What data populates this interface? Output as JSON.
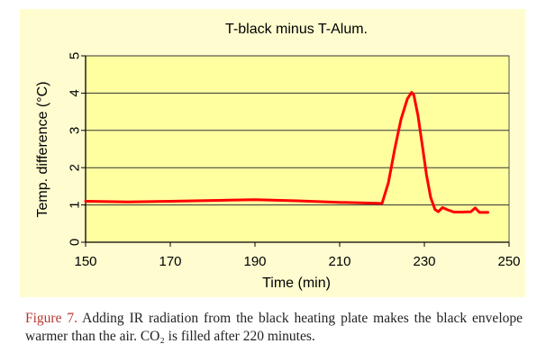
{
  "chart_data": {
    "type": "line",
    "title": "T-black minus T-Alum.",
    "xlabel": "Time (min)",
    "ylabel": "Temp. difference (°C)",
    "xlim": [
      150,
      250
    ],
    "ylim": [
      0,
      5
    ],
    "x_ticks": [
      "150",
      "170",
      "190",
      "210",
      "230",
      "250"
    ],
    "y_ticks": [
      "0",
      "1",
      "2",
      "3",
      "4",
      "5"
    ],
    "grid": true,
    "series_color": "#ff0000",
    "series": [
      {
        "x": [
          150,
          160,
          170,
          180,
          190,
          200,
          210,
          220,
          221.5,
          223,
          224.5,
          226,
          227,
          227.5,
          228.5,
          229.5,
          230.5,
          231.5,
          232.5,
          233.3,
          234.3,
          235.5,
          237,
          239,
          241,
          242,
          243,
          245
        ],
        "y": [
          1.1,
          1.08,
          1.1,
          1.12,
          1.14,
          1.11,
          1.07,
          1.04,
          1.6,
          2.5,
          3.3,
          3.85,
          4.02,
          3.95,
          3.4,
          2.6,
          1.8,
          1.2,
          0.88,
          0.82,
          0.93,
          0.87,
          0.81,
          0.81,
          0.82,
          0.92,
          0.8,
          0.8
        ]
      }
    ]
  },
  "caption": {
    "label": "Figure 7.",
    "text": "Adding IR radiation from the black heating plate makes the black envelope warmer than the air. CO₂ is filled after 220 minutes."
  }
}
